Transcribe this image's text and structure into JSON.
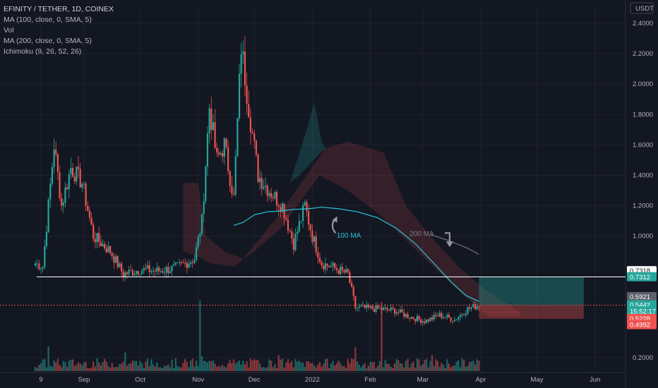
{
  "legend": {
    "title": "EFINITY / TETHER, 1D, COINEX",
    "lines": [
      "MA (100, close, 0, SMA, 5)",
      "Vol",
      "MA (200, close, 0, SMA, 5)",
      "Ichimoku (9, 26, 52, 26)"
    ]
  },
  "currency": "USDT",
  "colors": {
    "background": "#131722",
    "up": "#26a69a",
    "down": "#ef5350",
    "ma": "#26c6da",
    "ma200": "#5d606b",
    "grid": "#1e222d"
  },
  "icons": [
    "curved-up-arrow-icon",
    "curved-down-arrow-icon"
  ],
  "chart_data": {
    "type": "candlestick",
    "y_ticks": [
      "0.2000",
      "1.0000",
      "1.2000",
      "1.4000",
      "1.6000",
      "1.8000",
      "2.0000",
      "2.2000",
      "2.4000"
    ],
    "x_ticks": [
      "9",
      "Sep",
      "Oct",
      "Nov",
      "Dec",
      "2022",
      "Feb",
      "Mar",
      "Apr",
      "May",
      "Jun"
    ],
    "ylim": [
      0.08,
      2.5
    ],
    "annotations": [
      {
        "text": "100 MA",
        "x": "2022-01-14",
        "y": 0.99,
        "color": "#26c6da"
      },
      {
        "text": "200 MA",
        "x": "2022-02-22",
        "y": 1.0,
        "color": "#787b86"
      }
    ],
    "horizontal_line": {
      "price": 0.7312,
      "color": "#ffffff"
    },
    "price_labels": [
      {
        "text": "0.7318",
        "bg": "#ffffff",
        "fg": "#131722",
        "y": 0.77
      },
      {
        "text": "0.7312",
        "bg": "#26a69a",
        "fg": "#ffffff",
        "y": 0.73
      },
      {
        "text": "0.5921",
        "bg": "#5d606b",
        "fg": "#ffffff",
        "y": 0.6
      },
      {
        "text": "0.5442",
        "bg": "#26a69a",
        "fg": "#ffffff",
        "y": 0.545
      },
      {
        "text": "15:52:17",
        "bg": "#26a69a",
        "fg": "#ffffff",
        "y": 0.505
      },
      {
        "text": "0.5228",
        "bg": "#ef5350",
        "fg": "#ffffff",
        "y": 0.455
      },
      {
        "text": "0.4992",
        "bg": "#ef5350",
        "fg": "#ffffff",
        "y": 0.415
      }
    ],
    "position_tool": {
      "start": "2022-03-31",
      "end": "2022-05-26",
      "entry": 0.545,
      "target": 0.73,
      "stop": 0.455
    },
    "ohlc_keypoints": [
      [
        "2021-08-06",
        0.82
      ],
      [
        "2021-08-10",
        0.8
      ],
      [
        "2021-08-16",
        1.6
      ],
      [
        "2021-08-20",
        1.2
      ],
      [
        "2021-08-25",
        1.45
      ],
      [
        "2021-08-31",
        1.35
      ],
      [
        "2021-09-06",
        1.0
      ],
      [
        "2021-09-15",
        0.9
      ],
      [
        "2021-09-22",
        0.75
      ],
      [
        "2021-10-01",
        0.78
      ],
      [
        "2021-10-10",
        0.77
      ],
      [
        "2021-10-20",
        0.79
      ],
      [
        "2021-10-30",
        0.85
      ],
      [
        "2021-11-03",
        1.1
      ],
      [
        "2021-11-07",
        1.85
      ],
      [
        "2021-11-11",
        1.5
      ],
      [
        "2021-11-15",
        1.6
      ],
      [
        "2021-11-20",
        1.25
      ],
      [
        "2021-11-24",
        2.25
      ],
      [
        "2021-11-28",
        1.85
      ],
      [
        "2021-12-03",
        1.4
      ],
      [
        "2021-12-09",
        1.3
      ],
      [
        "2021-12-16",
        1.2
      ],
      [
        "2021-12-22",
        0.95
      ],
      [
        "2021-12-28",
        1.2
      ],
      [
        "2022-01-01",
        1.0
      ],
      [
        "2022-01-06",
        0.82
      ],
      [
        "2022-01-11",
        0.8
      ],
      [
        "2022-01-16",
        0.77
      ],
      [
        "2022-01-20",
        0.75
      ],
      [
        "2022-01-24",
        0.53
      ],
      [
        "2022-02-05",
        0.52
      ],
      [
        "2022-02-14",
        0.51
      ],
      [
        "2022-02-22",
        0.47
      ],
      [
        "2022-03-02",
        0.44
      ],
      [
        "2022-03-10",
        0.48
      ],
      [
        "2022-03-18",
        0.45
      ],
      [
        "2022-03-25",
        0.52
      ],
      [
        "2022-03-31",
        0.545
      ]
    ],
    "ma100": [
      [
        "2021-11-20",
        1.07
      ],
      [
        "2021-11-25",
        1.09
      ],
      [
        "2021-12-01",
        1.14
      ],
      [
        "2021-12-08",
        1.16
      ],
      [
        "2021-12-15",
        1.165
      ],
      [
        "2021-12-22",
        1.175
      ],
      [
        "2021-12-30",
        1.18
      ],
      [
        "2022-01-06",
        1.19
      ],
      [
        "2022-01-15",
        1.18
      ],
      [
        "2022-01-25",
        1.16
      ],
      [
        "2022-02-05",
        1.12
      ],
      [
        "2022-02-15",
        1.05
      ],
      [
        "2022-02-25",
        0.95
      ],
      [
        "2022-03-07",
        0.82
      ],
      [
        "2022-03-16",
        0.7
      ],
      [
        "2022-03-24",
        0.61
      ],
      [
        "2022-03-31",
        0.57
      ]
    ],
    "ma200": [
      [
        "2022-03-05",
        1.01
      ],
      [
        "2022-03-15",
        0.97
      ],
      [
        "2022-03-25",
        0.92
      ],
      [
        "2022-03-31",
        0.88
      ]
    ]
  }
}
